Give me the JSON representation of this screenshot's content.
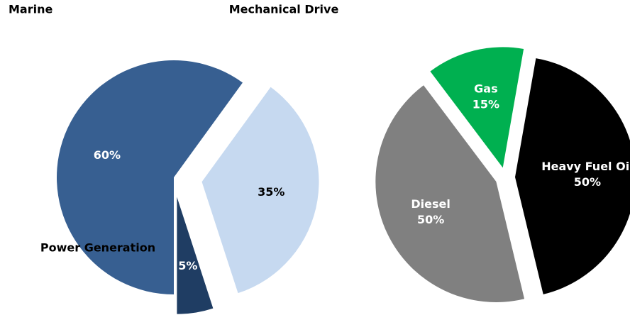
{
  "chart_data": [
    {
      "type": "pie",
      "categories": [
        "Marine",
        "Mechanical Drive",
        "Power Generation"
      ],
      "values": [
        35,
        5,
        60
      ],
      "value_labels": [
        "35%",
        "5%",
        "60%"
      ],
      "colors": [
        "#c6d9f0",
        "#1f3d63",
        "#375f91"
      ]
    },
    {
      "type": "pie",
      "categories": [
        "Gas",
        "Heavy Fuel Oil",
        "Diesel"
      ],
      "values": [
        15,
        50,
        50
      ],
      "value_labels": [
        "15%",
        "50%",
        "50%"
      ],
      "colors": [
        "#00b050",
        "#000000",
        "#808080"
      ]
    }
  ]
}
